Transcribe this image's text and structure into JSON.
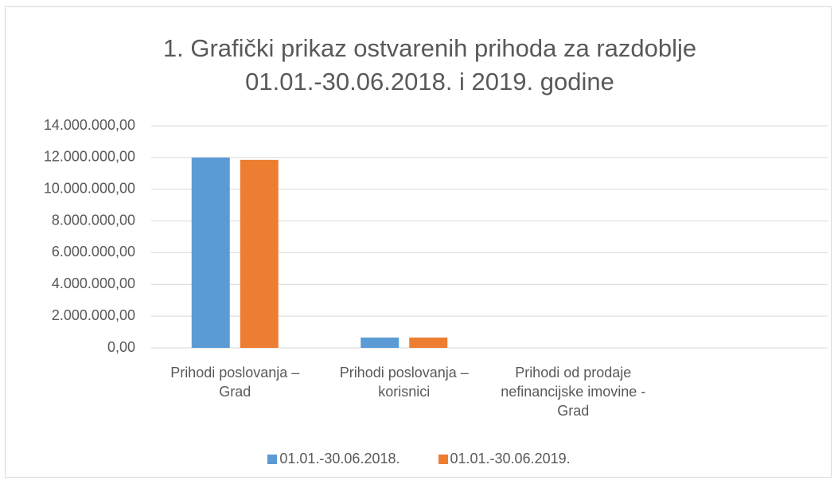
{
  "chart_data": {
    "type": "bar",
    "title": "1. Grafički prikaz ostvarenih prihoda za razdoblje 01.01.-30.06.2018. i 2019. godine",
    "categories": [
      "Prihodi poslovanja – Grad",
      "Prihodi poslovanja – korisnici",
      "Prihodi od prodaje nefinancijske imovine - Grad",
      null
    ],
    "series": [
      {
        "name": "01.01.-30.06.2018.",
        "color": "#5b9bd5",
        "values": [
          12000000,
          650000,
          0,
          null
        ]
      },
      {
        "name": "01.01.-30.06.2019.",
        "color": "#ed7d31",
        "values": [
          11850000,
          650000,
          0,
          null
        ]
      }
    ],
    "ylim": [
      0,
      14000000
    ],
    "yticks": [
      {
        "value": 0,
        "label": "0,00"
      },
      {
        "value": 2000000,
        "label": "2.000.000,00"
      },
      {
        "value": 4000000,
        "label": "4.000.000,00"
      },
      {
        "value": 6000000,
        "label": "6.000.000,00"
      },
      {
        "value": 8000000,
        "label": "8.000.000,00"
      },
      {
        "value": 10000000,
        "label": "10.000.000,00"
      },
      {
        "value": 12000000,
        "label": "12.000.000,00"
      },
      {
        "value": 14000000,
        "label": "14.000.000,00"
      }
    ],
    "grid": true,
    "legend": "bottom"
  }
}
